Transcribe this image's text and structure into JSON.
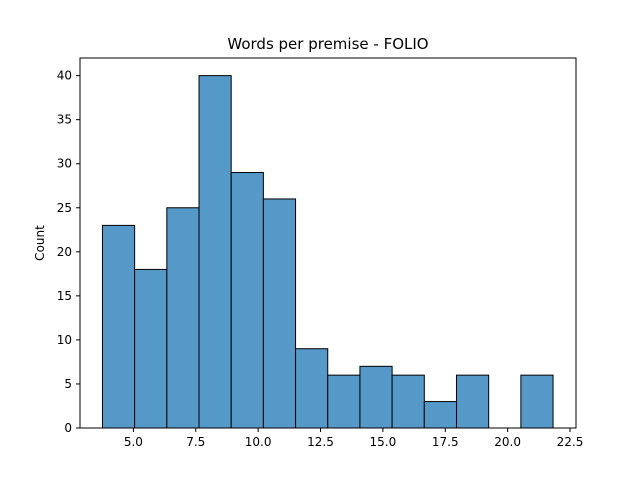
{
  "chart_data": {
    "type": "bar",
    "title": "Words per premise - FOLIO",
    "xlabel": "",
    "ylabel": "Count",
    "bar_color": "#5499c7",
    "edge_color": "#000000",
    "grid": false,
    "xlim": [
      2.86,
      22.74
    ],
    "ylim": [
      0,
      42
    ],
    "x_ticks": [
      5.0,
      7.5,
      10.0,
      12.5,
      15.0,
      17.5,
      20.0,
      22.5
    ],
    "x_tick_labels": [
      "5.0",
      "7.5",
      "10.0",
      "12.5",
      "15.0",
      "17.5",
      "20.0",
      "22.5"
    ],
    "y_ticks": [
      0,
      5,
      10,
      15,
      20,
      25,
      30,
      35,
      40
    ],
    "y_tick_labels": [
      "0",
      "5",
      "10",
      "15",
      "20",
      "25",
      "30",
      "35",
      "40"
    ],
    "bins": [
      {
        "x0": 3.76,
        "x1": 5.05,
        "count": 23
      },
      {
        "x0": 5.05,
        "x1": 6.34,
        "count": 18
      },
      {
        "x0": 6.34,
        "x1": 7.63,
        "count": 25
      },
      {
        "x0": 7.63,
        "x1": 8.92,
        "count": 40
      },
      {
        "x0": 8.92,
        "x1": 10.21,
        "count": 29
      },
      {
        "x0": 10.21,
        "x1": 11.5,
        "count": 26
      },
      {
        "x0": 11.5,
        "x1": 12.79,
        "count": 9
      },
      {
        "x0": 12.79,
        "x1": 14.08,
        "count": 6
      },
      {
        "x0": 14.08,
        "x1": 15.37,
        "count": 7
      },
      {
        "x0": 15.37,
        "x1": 16.66,
        "count": 6
      },
      {
        "x0": 16.66,
        "x1": 17.95,
        "count": 3
      },
      {
        "x0": 17.95,
        "x1": 19.24,
        "count": 6
      },
      {
        "x0": 19.24,
        "x1": 20.53,
        "count": 0
      },
      {
        "x0": 20.53,
        "x1": 21.82,
        "count": 6
      }
    ]
  }
}
